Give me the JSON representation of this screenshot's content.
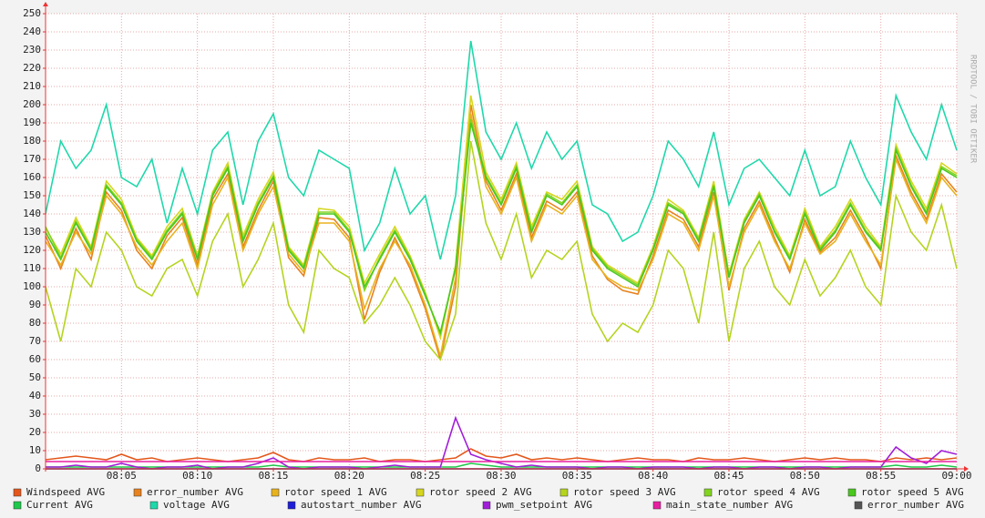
{
  "chart_data": {
    "type": "line",
    "watermark": "RRDTOOL / TOBI OETIKER",
    "x": [
      "08:00",
      "08:01",
      "08:02",
      "08:03",
      "08:04",
      "08:05",
      "08:06",
      "08:07",
      "08:08",
      "08:09",
      "08:10",
      "08:11",
      "08:12",
      "08:13",
      "08:14",
      "08:15",
      "08:16",
      "08:17",
      "08:18",
      "08:19",
      "08:20",
      "08:21",
      "08:22",
      "08:23",
      "08:24",
      "08:25",
      "08:26",
      "08:27",
      "08:28",
      "08:29",
      "08:30",
      "08:31",
      "08:32",
      "08:33",
      "08:34",
      "08:35",
      "08:36",
      "08:37",
      "08:38",
      "08:39",
      "08:40",
      "08:41",
      "08:42",
      "08:43",
      "08:44",
      "08:45",
      "08:46",
      "08:47",
      "08:48",
      "08:49",
      "08:50",
      "08:51",
      "08:52",
      "08:53",
      "08:54",
      "08:55",
      "08:56",
      "08:57",
      "08:58",
      "08:59",
      "09:00"
    ],
    "xticks": [
      "08:05",
      "08:10",
      "08:15",
      "08:20",
      "08:25",
      "08:30",
      "08:35",
      "08:40",
      "08:45",
      "08:50",
      "08:55",
      "09:00"
    ],
    "ylim": [
      0,
      250
    ],
    "yticks": [
      0,
      10,
      20,
      30,
      40,
      50,
      60,
      70,
      80,
      90,
      100,
      110,
      120,
      130,
      140,
      150,
      160,
      170,
      180,
      190,
      200,
      210,
      220,
      230,
      240,
      250
    ],
    "grid": true,
    "series": [
      {
        "name": "Windspeed AVG",
        "color": "#e4561b",
        "values": [
          5,
          6,
          7,
          6,
          5,
          8,
          5,
          6,
          4,
          5,
          6,
          5,
          4,
          5,
          6,
          9,
          5,
          4,
          6,
          5,
          5,
          6,
          4,
          5,
          5,
          4,
          5,
          6,
          11,
          7,
          6,
          8,
          5,
          6,
          5,
          6,
          5,
          4,
          5,
          6,
          5,
          5,
          4,
          6,
          5,
          5,
          6,
          5,
          4,
          5,
          6,
          5,
          6,
          5,
          5,
          4,
          6,
          5,
          6,
          5,
          6
        ]
      },
      {
        "name": "error_number AVG",
        "color": "#e8821e",
        "values": [
          128,
          110,
          132,
          115,
          152,
          142,
          120,
          110,
          128,
          138,
          112,
          148,
          162,
          122,
          142,
          158,
          116,
          106,
          138,
          137,
          127,
          82,
          108,
          127,
          110,
          88,
          60,
          100,
          200,
          158,
          142,
          162,
          127,
          147,
          142,
          152,
          117,
          104,
          98,
          96,
          117,
          142,
          137,
          122,
          152,
          98,
          132,
          147,
          127,
          108,
          137,
          119,
          127,
          142,
          127,
          110,
          172,
          152,
          137,
          162,
          152
        ]
      },
      {
        "name": "rotor speed 1 AVG",
        "color": "#e8b21e",
        "values": [
          125,
          112,
          130,
          118,
          150,
          140,
          122,
          112,
          125,
          135,
          110,
          145,
          160,
          120,
          140,
          155,
          118,
          108,
          135,
          135,
          125,
          88,
          110,
          125,
          112,
          90,
          62,
          105,
          195,
          155,
          140,
          160,
          125,
          145,
          140,
          150,
          115,
          105,
          100,
          98,
          115,
          140,
          135,
          120,
          150,
          100,
          130,
          145,
          125,
          110,
          135,
          118,
          125,
          140,
          125,
          112,
          170,
          150,
          135,
          160,
          150
        ]
      },
      {
        "name": "rotor speed 2 AVG",
        "color": "#d6d61e",
        "values": [
          132,
          118,
          138,
          122,
          158,
          148,
          127,
          117,
          133,
          143,
          117,
          152,
          168,
          128,
          148,
          163,
          122,
          112,
          143,
          142,
          133,
          102,
          118,
          133,
          117,
          97,
          72,
          112,
          205,
          163,
          148,
          168,
          133,
          152,
          148,
          158,
          122,
          112,
          107,
          102,
          122,
          148,
          142,
          127,
          158,
          107,
          137,
          152,
          133,
          117,
          143,
          122,
          133,
          148,
          133,
          122,
          178,
          158,
          143,
          168,
          162
        ]
      },
      {
        "name": "rotor speed 3 AVG",
        "color": "#b4d41e",
        "values": [
          100,
          70,
          110,
          100,
          130,
          120,
          100,
          95,
          110,
          115,
          95,
          125,
          140,
          100,
          115,
          135,
          90,
          75,
          120,
          110,
          105,
          80,
          90,
          105,
          90,
          70,
          60,
          85,
          180,
          135,
          115,
          140,
          105,
          120,
          115,
          125,
          85,
          70,
          80,
          75,
          90,
          120,
          110,
          80,
          130,
          70,
          110,
          125,
          100,
          90,
          115,
          95,
          105,
          120,
          100,
          90,
          150,
          130,
          120,
          145,
          110
        ]
      },
      {
        "name": "rotor speed 4 AVG",
        "color": "#82d41e",
        "values": [
          133,
          116,
          136,
          121,
          156,
          146,
          126,
          116,
          131,
          141,
          116,
          151,
          166,
          126,
          146,
          161,
          121,
          111,
          141,
          141,
          131,
          98,
          116,
          131,
          116,
          96,
          74,
          111,
          192,
          161,
          146,
          166,
          131,
          151,
          146,
          156,
          121,
          111,
          106,
          101,
          121,
          146,
          141,
          126,
          156,
          106,
          136,
          151,
          131,
          116,
          141,
          121,
          131,
          146,
          131,
          121,
          176,
          156,
          141,
          166,
          161
        ]
      },
      {
        "name": "rotor speed 5 AVG",
        "color": "#4ac81e",
        "values": [
          130,
          115,
          135,
          120,
          155,
          145,
          125,
          115,
          130,
          140,
          115,
          150,
          165,
          125,
          145,
          160,
          120,
          110,
          140,
          140,
          130,
          100,
          115,
          130,
          115,
          95,
          75,
          110,
          190,
          160,
          145,
          165,
          130,
          150,
          145,
          155,
          120,
          110,
          105,
          100,
          120,
          145,
          140,
          125,
          155,
          105,
          135,
          150,
          130,
          115,
          140,
          120,
          130,
          145,
          130,
          120,
          175,
          155,
          140,
          165,
          160
        ]
      },
      {
        "name": "Current AVG",
        "color": "#1ec84a",
        "values": [
          1,
          1,
          1,
          1,
          1,
          1,
          1,
          1,
          1,
          1,
          1,
          1,
          1,
          1,
          1,
          2,
          1,
          1,
          1,
          1,
          1,
          1,
          1,
          1,
          1,
          1,
          1,
          1,
          3,
          2,
          1,
          1,
          1,
          1,
          1,
          1,
          1,
          1,
          1,
          1,
          1,
          1,
          1,
          1,
          1,
          1,
          1,
          1,
          1,
          1,
          1,
          1,
          1,
          1,
          1,
          1,
          2,
          1,
          1,
          2,
          1
        ]
      },
      {
        "name": "voltage AVG",
        "color": "#1ed8aa",
        "values": [
          140,
          180,
          165,
          175,
          200,
          160,
          155,
          170,
          135,
          165,
          140,
          175,
          185,
          145,
          180,
          195,
          160,
          150,
          175,
          170,
          165,
          120,
          135,
          165,
          140,
          150,
          115,
          150,
          235,
          185,
          170,
          190,
          165,
          185,
          170,
          180,
          145,
          140,
          125,
          130,
          150,
          180,
          170,
          155,
          185,
          145,
          165,
          170,
          160,
          150,
          175,
          150,
          155,
          180,
          160,
          145,
          205,
          185,
          170,
          200,
          175
        ]
      },
      {
        "name": "autostart_number AVG",
        "color": "#1e1ed8",
        "values": [
          0,
          0,
          0,
          0,
          0,
          0,
          0,
          0,
          0,
          0,
          0,
          0,
          0,
          0,
          0,
          0,
          0,
          0,
          0,
          0,
          0,
          0,
          0,
          0,
          0,
          0,
          0,
          0,
          0,
          0,
          0,
          0,
          0,
          0,
          0,
          0,
          0,
          0,
          0,
          0,
          0,
          0,
          0,
          0,
          0,
          0,
          0,
          0,
          0,
          0,
          0,
          0,
          0,
          0,
          0,
          0,
          0,
          0,
          0,
          0,
          0
        ]
      },
      {
        "name": "pwm_setpoint AVG",
        "color": "#a01ed8",
        "values": [
          1,
          1,
          2,
          1,
          1,
          3,
          1,
          0,
          1,
          1,
          2,
          0,
          1,
          1,
          3,
          6,
          1,
          0,
          1,
          1,
          1,
          0,
          1,
          2,
          1,
          1,
          1,
          28,
          8,
          5,
          3,
          1,
          2,
          1,
          1,
          1,
          0,
          1,
          1,
          0,
          1,
          1,
          1,
          0,
          1,
          1,
          0,
          1,
          1,
          0,
          1,
          1,
          0,
          1,
          1,
          1,
          12,
          6,
          3,
          10,
          8
        ]
      },
      {
        "name": "main_state_number AVG",
        "color": "#e81ea0",
        "values": [
          4,
          4,
          4,
          4,
          4,
          4,
          4,
          4,
          4,
          4,
          4,
          4,
          4,
          4,
          4,
          4,
          4,
          4,
          4,
          4,
          4,
          4,
          4,
          4,
          4,
          4,
          4,
          4,
          4,
          4,
          4,
          4,
          4,
          4,
          4,
          4,
          4,
          4,
          4,
          4,
          4,
          4,
          4,
          4,
          4,
          4,
          4,
          4,
          4,
          4,
          4,
          4,
          4,
          4,
          4,
          4,
          4,
          4,
          4,
          4,
          4
        ]
      },
      {
        "name": "error_number AVG",
        "color": "#555555",
        "values": [
          0,
          0,
          0,
          0,
          0,
          0,
          0,
          0,
          0,
          0,
          0,
          0,
          0,
          0,
          0,
          0,
          0,
          0,
          0,
          0,
          0,
          0,
          0,
          0,
          0,
          0,
          0,
          0,
          0,
          0,
          0,
          0,
          0,
          0,
          0,
          0,
          0,
          0,
          0,
          0,
          0,
          0,
          0,
          0,
          0,
          0,
          0,
          0,
          0,
          0,
          0,
          0,
          0,
          0,
          0,
          0,
          0,
          0,
          0,
          0,
          0
        ]
      }
    ]
  }
}
